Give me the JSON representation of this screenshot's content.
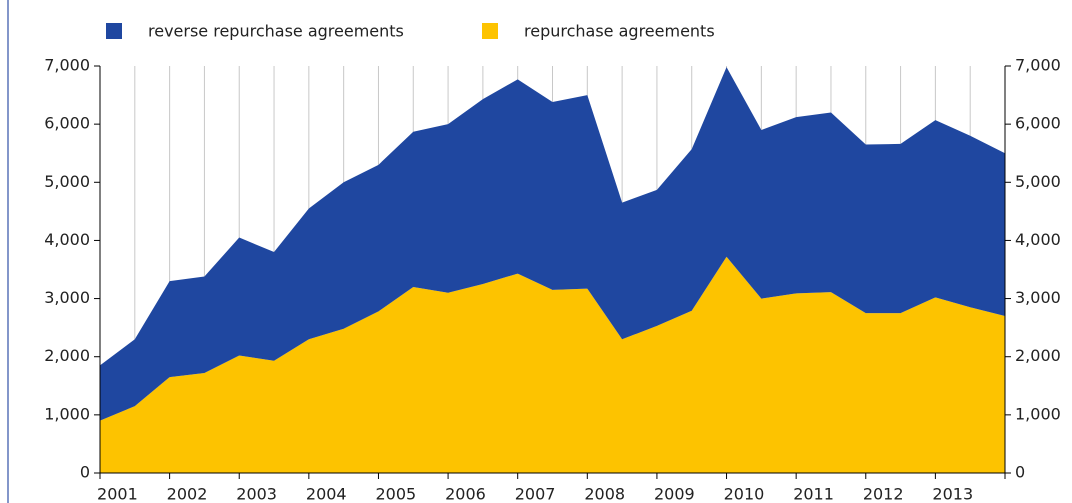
{
  "chart_data": {
    "type": "stacked_area",
    "categories": [
      "2001",
      null,
      "2002",
      null,
      "2003",
      null,
      "2004",
      null,
      "2005",
      null,
      "2006",
      null,
      "2007",
      null,
      "2008",
      null,
      "2009",
      null,
      "2010",
      null,
      "2011",
      null,
      "2012",
      null,
      "2013",
      null,
      null
    ],
    "series": [
      {
        "name": "reverse repurchase agreements",
        "color": "#1f47a0",
        "values": [
          950,
          1150,
          1650,
          1660,
          2030,
          1870,
          2250,
          2520,
          2520,
          2670,
          2900,
          3180,
          3340,
          3230,
          3330,
          2350,
          2340,
          2780,
          3260,
          2900,
          3030,
          3090,
          2900,
          2910,
          3050,
          2950,
          2800
        ]
      },
      {
        "name": "repurchase agreements",
        "color": "#fdc300",
        "values": [
          900,
          1150,
          1650,
          1720,
          2020,
          1930,
          2300,
          2480,
          2780,
          3200,
          3100,
          3250,
          3430,
          3150,
          3170,
          2300,
          2530,
          2790,
          3720,
          3000,
          3090,
          3110,
          2750,
          2750,
          3020,
          2850,
          2700
        ]
      }
    ],
    "ylim": [
      0,
      7000
    ],
    "yticks": [
      0,
      {
        "value": 1000,
        "label": "1,000"
      },
      {
        "value": 2000,
        "label": "2,000"
      },
      {
        "value": 3000,
        "label": "3,000"
      },
      {
        "value": 4000,
        "label": "4,000"
      },
      {
        "value": 5000,
        "label": "5,000"
      },
      {
        "value": 6000,
        "label": "6,000"
      },
      {
        "value": 7000,
        "label": "7,000"
      }
    ],
    "y2lim": [
      0,
      7000
    ],
    "y2ticks": [
      0,
      {
        "value": 1000,
        "label": "1,000"
      },
      {
        "value": 2000,
        "label": "2,000"
      },
      {
        "value": 3000,
        "label": "3,000"
      },
      {
        "value": 4000,
        "label": "4,000"
      },
      {
        "value": 5000,
        "label": "5,000"
      },
      {
        "value": 6000,
        "label": "6,000"
      },
      {
        "value": 7000,
        "label": "7,000"
      }
    ],
    "grid": true,
    "legend": "top"
  }
}
